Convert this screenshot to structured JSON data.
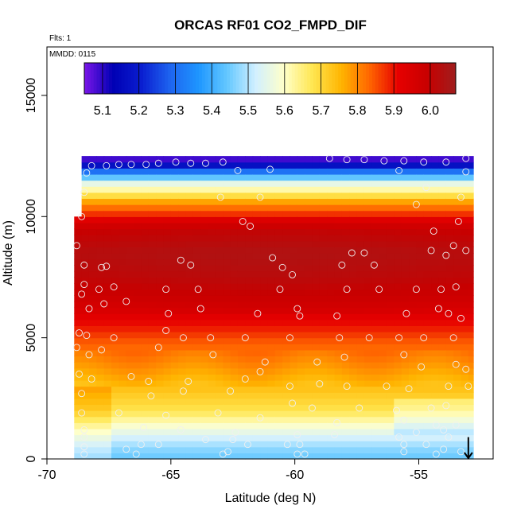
{
  "chart_data": {
    "type": "heatmap",
    "title": "ORCAS RF01 CO2_FMPD_DIF",
    "annotation_flights": "Flts: 1",
    "annotation_date": "MMDD: 0115",
    "xlabel": "Latitude (deg N)",
    "ylabel": "Altitude (m)",
    "xlim": [
      -70,
      -52
    ],
    "ylim": [
      0,
      17000
    ],
    "x_ticks": [
      {
        "value": -70,
        "label": "-70"
      },
      {
        "value": -65,
        "label": "-65"
      },
      {
        "value": -60,
        "label": "-60"
      },
      {
        "value": -55,
        "label": "-55"
      }
    ],
    "y_ticks": [
      {
        "value": 0,
        "label": "0"
      },
      {
        "value": 5000,
        "label": "5000"
      },
      {
        "value": 10000,
        "label": "10000"
      },
      {
        "value": 15000,
        "label": "15000"
      }
    ],
    "colorbar": {
      "range": [
        5.05,
        6.07
      ],
      "ticks": [
        {
          "value": 5.1,
          "label": "5.1"
        },
        {
          "value": 5.2,
          "label": "5.2"
        },
        {
          "value": 5.3,
          "label": "5.3"
        },
        {
          "value": 5.4,
          "label": "5.4"
        },
        {
          "value": 5.5,
          "label": "5.5"
        },
        {
          "value": 5.6,
          "label": "5.6"
        },
        {
          "value": 5.7,
          "label": "5.7"
        },
        {
          "value": 5.8,
          "label": "5.8"
        },
        {
          "value": 5.9,
          "label": "5.9"
        },
        {
          "value": 6.0,
          "label": "6.0"
        }
      ],
      "palette": [
        "#7b16e8",
        "#0000b4",
        "#0a1ed0",
        "#1e64f0",
        "#1e96ff",
        "#64c8ff",
        "#d2f0ff",
        "#ffffc8",
        "#ffe650",
        "#ffb400",
        "#ff6400",
        "#e60000",
        "#c80000",
        "#a01e1e"
      ]
    },
    "profile": [
      {
        "alt": 200,
        "value": 5.45
      },
      {
        "alt": 700,
        "value": 5.5
      },
      {
        "alt": 1300,
        "value": 5.58
      },
      {
        "alt": 2000,
        "value": 5.68
      },
      {
        "alt": 3000,
        "value": 5.74
      },
      {
        "alt": 4000,
        "value": 5.8
      },
      {
        "alt": 4800,
        "value": 5.84
      },
      {
        "alt": 5500,
        "value": 5.9
      },
      {
        "alt": 6500,
        "value": 5.96
      },
      {
        "alt": 7500,
        "value": 6.0
      },
      {
        "alt": 8500,
        "value": 6.02
      },
      {
        "alt": 9500,
        "value": 5.98
      },
      {
        "alt": 10100,
        "value": 5.88
      },
      {
        "alt": 10600,
        "value": 5.78
      },
      {
        "alt": 11000,
        "value": 5.65
      },
      {
        "alt": 11400,
        "value": 5.55
      },
      {
        "alt": 11800,
        "value": 5.35
      },
      {
        "alt": 12100,
        "value": 5.18
      },
      {
        "alt": 12400,
        "value": 5.08
      }
    ],
    "data_region": {
      "x_min": -68.7,
      "x_max": -52.8,
      "alt_max": 12300,
      "left_lower_x_min": -68.9,
      "left_lower_alt_max": 10000
    },
    "observations": [
      [
        -68.2,
        12100
      ],
      [
        -67.6,
        12100
      ],
      [
        -67.1,
        12150
      ],
      [
        -66.6,
        12150
      ],
      [
        -66.0,
        12150
      ],
      [
        -65.5,
        12200
      ],
      [
        -64.8,
        12250
      ],
      [
        -64.2,
        12200
      ],
      [
        -63.6,
        12200
      ],
      [
        -62.9,
        12250
      ],
      [
        -58.6,
        12400
      ],
      [
        -57.9,
        12350
      ],
      [
        -57.2,
        12350
      ],
      [
        -56.4,
        12300
      ],
      [
        -55.6,
        12300
      ],
      [
        -54.8,
        12250
      ],
      [
        -53.9,
        12250
      ],
      [
        -53.1,
        12400
      ],
      [
        -68.4,
        11800
      ],
      [
        -62.3,
        11900
      ],
      [
        -61.0,
        11950
      ],
      [
        -55.8,
        11900
      ],
      [
        -54.7,
        11200
      ],
      [
        -53.1,
        11850
      ],
      [
        -68.5,
        11000
      ],
      [
        -63.0,
        10800
      ],
      [
        -61.4,
        10800
      ],
      [
        -55.1,
        10500
      ],
      [
        -53.3,
        10800
      ],
      [
        -68.6,
        10000
      ],
      [
        -62.1,
        9800
      ],
      [
        -61.8,
        9600
      ],
      [
        -54.4,
        9400
      ],
      [
        -53.4,
        9800
      ],
      [
        -68.8,
        8800
      ],
      [
        -68.5,
        8000
      ],
      [
        -67.8,
        7900
      ],
      [
        -67.6,
        7950
      ],
      [
        -64.6,
        8200
      ],
      [
        -64.2,
        8000
      ],
      [
        -60.9,
        8300
      ],
      [
        -60.5,
        7900
      ],
      [
        -60.1,
        7600
      ],
      [
        -58.1,
        8000
      ],
      [
        -57.7,
        8500
      ],
      [
        -57.2,
        8500
      ],
      [
        -56.8,
        8000
      ],
      [
        -54.5,
        8600
      ],
      [
        -53.9,
        8400
      ],
      [
        -53.6,
        8800
      ],
      [
        -53.1,
        8600
      ],
      [
        -68.5,
        7200
      ],
      [
        -67.9,
        7000
      ],
      [
        -67.3,
        7100
      ],
      [
        -65.2,
        7000
      ],
      [
        -63.9,
        7000
      ],
      [
        -60.6,
        7000
      ],
      [
        -57.9,
        7000
      ],
      [
        -56.6,
        7000
      ],
      [
        -55.1,
        7000
      ],
      [
        -54.1,
        7000
      ],
      [
        -53.5,
        7100
      ],
      [
        -68.6,
        6800
      ],
      [
        -68.3,
        6200
      ],
      [
        -67.7,
        6400
      ],
      [
        -66.8,
        6500
      ],
      [
        -65.1,
        6000
      ],
      [
        -63.8,
        6200
      ],
      [
        -61.5,
        6000
      ],
      [
        -59.9,
        6200
      ],
      [
        -59.8,
        5900
      ],
      [
        -58.3,
        5900
      ],
      [
        -55.5,
        6000
      ],
      [
        -54.2,
        6200
      ],
      [
        -53.8,
        6000
      ],
      [
        -53.3,
        5800
      ],
      [
        -68.7,
        5200
      ],
      [
        -68.4,
        5100
      ],
      [
        -67.3,
        5000
      ],
      [
        -65.2,
        5300
      ],
      [
        -64.5,
        5000
      ],
      [
        -63.4,
        5000
      ],
      [
        -62.0,
        5000
      ],
      [
        -60.2,
        5000
      ],
      [
        -58.2,
        5000
      ],
      [
        -57.0,
        5000
      ],
      [
        -55.8,
        5000
      ],
      [
        -54.8,
        5000
      ],
      [
        -53.6,
        5000
      ],
      [
        -68.8,
        4600
      ],
      [
        -68.3,
        4300
      ],
      [
        -67.8,
        4500
      ],
      [
        -65.5,
        4600
      ],
      [
        -63.3,
        4300
      ],
      [
        -61.2,
        4000
      ],
      [
        -59.1,
        4000
      ],
      [
        -58.0,
        4200
      ],
      [
        -55.6,
        4300
      ],
      [
        -54.9,
        3800
      ],
      [
        -53.5,
        3900
      ],
      [
        -53.1,
        3700
      ],
      [
        -68.7,
        3500
      ],
      [
        -68.2,
        3300
      ],
      [
        -66.6,
        3400
      ],
      [
        -65.9,
        3200
      ],
      [
        -64.3,
        3200
      ],
      [
        -62.0,
        3300
      ],
      [
        -61.4,
        3600
      ],
      [
        -60.2,
        3000
      ],
      [
        -59.0,
        3100
      ],
      [
        -57.9,
        3000
      ],
      [
        -56.3,
        3000
      ],
      [
        -55.4,
        2900
      ],
      [
        -53.8,
        3000
      ],
      [
        -53.0,
        3000
      ],
      [
        -68.6,
        2700
      ],
      [
        -65.8,
        2600
      ],
      [
        -64.5,
        2800
      ],
      [
        -62.6,
        2800
      ],
      [
        -60.1,
        2300
      ],
      [
        -59.3,
        2100
      ],
      [
        -57.4,
        2100
      ],
      [
        -55.9,
        2000
      ],
      [
        -54.5,
        2100
      ],
      [
        -53.9,
        2200
      ],
      [
        -68.6,
        1900
      ],
      [
        -67.1,
        1900
      ],
      [
        -65.2,
        1800
      ],
      [
        -63.1,
        1900
      ],
      [
        -61.4,
        1700
      ],
      [
        -58.3,
        1500
      ],
      [
        -55.6,
        1600
      ],
      [
        -54.0,
        1200
      ],
      [
        -53.5,
        1400
      ],
      [
        -68.5,
        1200
      ],
      [
        -66.1,
        1300
      ],
      [
        -64.6,
        1200
      ],
      [
        -62.4,
        1100
      ],
      [
        -59.9,
        1000
      ],
      [
        -58.4,
        1000
      ],
      [
        -55.1,
        1100
      ],
      [
        -54.3,
        1400
      ],
      [
        -53.8,
        900
      ],
      [
        -68.5,
        900
      ],
      [
        -66.2,
        600
      ],
      [
        -65.5,
        600
      ],
      [
        -63.6,
        800
      ],
      [
        -62.5,
        800
      ],
      [
        -61.9,
        600
      ],
      [
        -60.3,
        600
      ],
      [
        -59.8,
        600
      ],
      [
        -55.8,
        900
      ],
      [
        -55.6,
        600
      ],
      [
        -54.7,
        600
      ],
      [
        -54.0,
        400
      ],
      [
        -68.5,
        500
      ],
      [
        -66.8,
        400
      ],
      [
        -66.4,
        200
      ],
      [
        -62.9,
        200
      ],
      [
        -62.7,
        300
      ],
      [
        -59.9,
        200
      ],
      [
        -59.6,
        200
      ],
      [
        -55.6,
        300
      ],
      [
        -54.3,
        200
      ],
      [
        -53.3,
        300
      ],
      [
        -68.5,
        200
      ]
    ],
    "marker": {
      "x": -53.0,
      "alt": 200
    }
  }
}
